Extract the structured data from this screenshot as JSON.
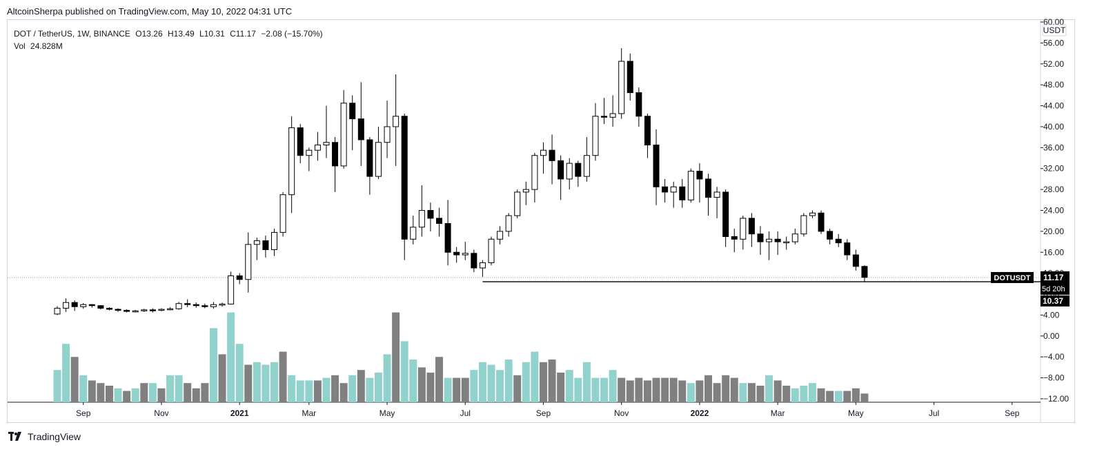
{
  "header": {
    "published_line": "AltcoinSherpa published on TradingView.com, May 10, 2022 04:31 UTC"
  },
  "legend": {
    "symbol": "DOT / TetherUS, 1W, BINANCE",
    "open_label": "O",
    "open": "13.26",
    "high_label": "H",
    "high": "13.49",
    "low_label": "L",
    "low": "10.31",
    "close_label": "C",
    "close": "11.17",
    "change": "−2.08 (−15.70%)",
    "vol_label": "Vol",
    "vol": "24.828M"
  },
  "price_axis": {
    "currency": "USDT",
    "last_price": "11.17",
    "countdown": "5d 20h",
    "low_marker": "10.37",
    "symbol_tag": "DOTUSDT"
  },
  "footer": {
    "brand": "TradingView"
  },
  "colors": {
    "up_body": "#ffffff",
    "down_body": "#000000",
    "wick": "#000000",
    "vol_up": "#92d2cc",
    "vol_down": "#808080",
    "support": "#000000"
  },
  "chart_data": {
    "type": "candlestick",
    "ylim": [
      -12,
      60
    ],
    "yticks": [
      -12,
      -8,
      -4,
      0,
      4,
      8,
      12,
      16,
      20,
      24,
      28,
      32,
      36,
      40,
      44,
      48,
      52,
      56,
      60
    ],
    "ytick_labels": [
      "−12.00",
      "−8.00",
      "−4.00",
      "0.00",
      "4.00",
      "8.00",
      "12.00",
      "16.00",
      "20.00",
      "24.00",
      "28.00",
      "32.00",
      "36.00",
      "40.00",
      "44.00",
      "48.00",
      "52.00",
      "56.00",
      "60.00"
    ],
    "xticks": [
      {
        "label": "Sep",
        "index": 3,
        "bold": false
      },
      {
        "label": "Nov",
        "index": 12,
        "bold": false
      },
      {
        "label": "2021",
        "index": 21,
        "bold": true
      },
      {
        "label": "Mar",
        "index": 29,
        "bold": false
      },
      {
        "label": "May",
        "index": 38,
        "bold": false
      },
      {
        "label": "Jul",
        "index": 47,
        "bold": false
      },
      {
        "label": "Sep",
        "index": 56,
        "bold": false
      },
      {
        "label": "Nov",
        "index": 65,
        "bold": false
      },
      {
        "label": "2022",
        "index": 74,
        "bold": true
      },
      {
        "label": "Mar",
        "index": 83,
        "bold": false
      },
      {
        "label": "May",
        "index": 92,
        "bold": false
      },
      {
        "label": "Jul",
        "index": 101,
        "bold": false
      },
      {
        "label": "Sep",
        "index": 110,
        "bold": false
      }
    ],
    "candles": [
      [
        4.2,
        5.3,
        4.0,
        5.7
      ],
      [
        5.3,
        6.4,
        4.6,
        7.2
      ],
      [
        6.4,
        5.6,
        4.8,
        6.8
      ],
      [
        5.6,
        6.0,
        5.2,
        6.3
      ],
      [
        6.0,
        5.8,
        5.4,
        6.1
      ],
      [
        5.8,
        5.3,
        5.1,
        5.9
      ],
      [
        5.3,
        5.1,
        4.9,
        5.5
      ],
      [
        5.1,
        4.9,
        4.6,
        5.3
      ],
      [
        4.9,
        4.7,
        4.5,
        5.1
      ],
      [
        4.7,
        4.8,
        4.5,
        5.0
      ],
      [
        4.8,
        5.0,
        4.6,
        5.2
      ],
      [
        5.0,
        4.9,
        4.5,
        5.3
      ],
      [
        4.9,
        5.1,
        4.7,
        5.3
      ],
      [
        5.1,
        5.2,
        4.9,
        5.5
      ],
      [
        5.2,
        6.2,
        5.0,
        6.5
      ],
      [
        6.2,
        6.0,
        5.5,
        7.0
      ],
      [
        6.0,
        5.8,
        5.4,
        6.4
      ],
      [
        5.8,
        5.6,
        5.3,
        6.2
      ],
      [
        5.6,
        6.0,
        5.2,
        6.5
      ],
      [
        6.0,
        6.1,
        5.6,
        6.4
      ],
      [
        6.1,
        11.5,
        6.0,
        12.3
      ],
      [
        11.5,
        10.8,
        9.9,
        12.0
      ],
      [
        10.8,
        17.5,
        8.3,
        19.8
      ],
      [
        17.5,
        18.2,
        14.5,
        18.8
      ],
      [
        18.2,
        16.5,
        15.0,
        19.2
      ],
      [
        16.5,
        19.8,
        15.3,
        20.5
      ],
      [
        19.8,
        27.0,
        19.0,
        27.5
      ],
      [
        27.0,
        39.8,
        23.5,
        42.0
      ],
      [
        39.8,
        34.5,
        33.0,
        40.5
      ],
      [
        34.5,
        35.5,
        31.5,
        36.0
      ],
      [
        35.5,
        36.5,
        33.5,
        39.0
      ],
      [
        36.5,
        37.0,
        34.0,
        44.0
      ],
      [
        37.0,
        32.5,
        27.5,
        38.0
      ],
      [
        32.5,
        44.5,
        32.0,
        47.0
      ],
      [
        44.5,
        41.5,
        35.5,
        46.0
      ],
      [
        41.5,
        37.5,
        32.5,
        48.5
      ],
      [
        37.5,
        30.5,
        27.0,
        38.0
      ],
      [
        30.5,
        37.0,
        30.0,
        40.0
      ],
      [
        37.0,
        40.0,
        34.0,
        45.0
      ],
      [
        40.0,
        42.0,
        32.5,
        50.0
      ],
      [
        42.0,
        18.5,
        14.5,
        42.5
      ],
      [
        18.5,
        20.8,
        17.5,
        23.0
      ],
      [
        20.8,
        24.0,
        19.0,
        28.8
      ],
      [
        24.0,
        22.5,
        20.0,
        25.5
      ],
      [
        22.5,
        21.5,
        19.0,
        24.5
      ],
      [
        21.5,
        16.0,
        13.5,
        26.0
      ],
      [
        16.0,
        15.5,
        14.0,
        17.0
      ],
      [
        15.5,
        15.8,
        14.5,
        18.0
      ],
      [
        15.8,
        13.0,
        12.2,
        16.5
      ],
      [
        13.0,
        14.0,
        11.3,
        14.5
      ],
      [
        14.0,
        18.5,
        13.5,
        19.0
      ],
      [
        18.5,
        20.0,
        17.5,
        21.0
      ],
      [
        20.0,
        23.0,
        19.0,
        23.5
      ],
      [
        23.0,
        27.5,
        22.5,
        28.0
      ],
      [
        27.5,
        28.0,
        25.0,
        29.5
      ],
      [
        28.0,
        34.5,
        25.5,
        35.0
      ],
      [
        34.5,
        35.5,
        31.0,
        37.0
      ],
      [
        35.5,
        33.5,
        29.0,
        38.5
      ],
      [
        33.5,
        30.0,
        26.0,
        34.5
      ],
      [
        30.0,
        33.0,
        28.0,
        34.0
      ],
      [
        33.0,
        30.5,
        28.5,
        33.5
      ],
      [
        30.5,
        34.5,
        29.5,
        38.0
      ],
      [
        34.5,
        42.0,
        33.5,
        44.5
      ],
      [
        42.0,
        41.8,
        40.5,
        45.5
      ],
      [
        41.8,
        42.5,
        40.0,
        46.0
      ],
      [
        42.5,
        52.5,
        41.5,
        55.0
      ],
      [
        52.5,
        46.5,
        45.0,
        54.0
      ],
      [
        46.5,
        42.0,
        40.0,
        47.5
      ],
      [
        42.0,
        36.5,
        34.0,
        42.5
      ],
      [
        36.5,
        28.5,
        25.0,
        39.5
      ],
      [
        28.5,
        27.5,
        25.5,
        30.0
      ],
      [
        27.5,
        28.5,
        24.5,
        29.5
      ],
      [
        28.5,
        26.0,
        24.5,
        30.0
      ],
      [
        26.0,
        31.5,
        25.5,
        32.0
      ],
      [
        31.5,
        30.0,
        25.5,
        33.0
      ],
      [
        30.0,
        26.5,
        23.0,
        31.0
      ],
      [
        26.5,
        27.5,
        22.5,
        28.5
      ],
      [
        27.5,
        19.0,
        17.0,
        28.0
      ],
      [
        19.0,
        18.5,
        16.0,
        20.5
      ],
      [
        18.5,
        22.5,
        16.5,
        23.0
      ],
      [
        22.5,
        19.5,
        17.0,
        23.5
      ],
      [
        19.5,
        18.0,
        15.5,
        21.0
      ],
      [
        18.0,
        18.5,
        14.5,
        20.0
      ],
      [
        18.5,
        18.0,
        15.5,
        20.0
      ],
      [
        18.0,
        18.0,
        16.5,
        19.0
      ],
      [
        18.0,
        19.5,
        17.5,
        20.5
      ],
      [
        19.5,
        23.0,
        19.0,
        23.5
      ],
      [
        23.0,
        23.5,
        22.5,
        24.0
      ],
      [
        23.5,
        20.0,
        19.5,
        24.0
      ],
      [
        20.0,
        18.5,
        17.5,
        20.5
      ],
      [
        18.5,
        17.8,
        17.0,
        19.5
      ],
      [
        17.8,
        15.5,
        14.5,
        18.5
      ],
      [
        15.5,
        13.3,
        12.5,
        16.5
      ],
      [
        13.3,
        11.2,
        10.3,
        13.5
      ]
    ],
    "volume": [
      [
        -6.5,
        true
      ],
      [
        -1.5,
        true
      ],
      [
        -4.0,
        false
      ],
      [
        -7.5,
        true
      ],
      [
        -8.5,
        false
      ],
      [
        -9.0,
        false
      ],
      [
        -9.5,
        false
      ],
      [
        -10.0,
        true
      ],
      [
        -10.5,
        false
      ],
      [
        -10.0,
        true
      ],
      [
        -9.0,
        false
      ],
      [
        -9.0,
        true
      ],
      [
        -10.0,
        false
      ],
      [
        -7.5,
        true
      ],
      [
        -7.5,
        true
      ],
      [
        -9.0,
        false
      ],
      [
        -10.0,
        false
      ],
      [
        -9.0,
        false
      ],
      [
        1.5,
        true
      ],
      [
        -3.5,
        false
      ],
      [
        4.5,
        true
      ],
      [
        -1.5,
        true
      ],
      [
        -5.5,
        false
      ],
      [
        -5.0,
        true
      ],
      [
        -5.5,
        true
      ],
      [
        -5.0,
        true
      ],
      [
        -3.0,
        false
      ],
      [
        -7.5,
        true
      ],
      [
        -8.5,
        true
      ],
      [
        -8.5,
        true
      ],
      [
        -8.5,
        false
      ],
      [
        -8.0,
        true
      ],
      [
        -7.5,
        false
      ],
      [
        -9.0,
        false
      ],
      [
        -7.5,
        true
      ],
      [
        -6.5,
        false
      ],
      [
        -8.0,
        true
      ],
      [
        -7.0,
        true
      ],
      [
        -3.5,
        true
      ],
      [
        4.5,
        false
      ],
      [
        -1.0,
        true
      ],
      [
        -4.5,
        true
      ],
      [
        -6.0,
        false
      ],
      [
        -7.0,
        false
      ],
      [
        -4.0,
        false
      ],
      [
        -8.0,
        true
      ],
      [
        -8.0,
        false
      ],
      [
        -8.0,
        false
      ],
      [
        -6.5,
        true
      ],
      [
        -5.0,
        true
      ],
      [
        -5.5,
        true
      ],
      [
        -6.5,
        true
      ],
      [
        -4.5,
        true
      ],
      [
        -7.5,
        false
      ],
      [
        -5.0,
        true
      ],
      [
        -3.0,
        true
      ],
      [
        -5.0,
        false
      ],
      [
        -4.5,
        false
      ],
      [
        -7.0,
        false
      ],
      [
        -6.5,
        true
      ],
      [
        -8.0,
        true
      ],
      [
        -5.0,
        true
      ],
      [
        -8.0,
        true
      ],
      [
        -8.0,
        true
      ],
      [
        -6.5,
        true
      ],
      [
        -8.0,
        false
      ],
      [
        -8.5,
        false
      ],
      [
        -8.0,
        false
      ],
      [
        -8.5,
        false
      ],
      [
        -8.0,
        false
      ],
      [
        -8.0,
        false
      ],
      [
        -8.0,
        false
      ],
      [
        -8.5,
        false
      ],
      [
        -9.0,
        true
      ],
      [
        -8.5,
        false
      ],
      [
        -7.5,
        false
      ],
      [
        -9.0,
        false
      ],
      [
        -7.5,
        false
      ],
      [
        -8.0,
        false
      ],
      [
        -9.0,
        true
      ],
      [
        -9.0,
        false
      ],
      [
        -9.5,
        false
      ],
      [
        -7.5,
        true
      ],
      [
        -8.5,
        false
      ],
      [
        -9.5,
        false
      ],
      [
        -10.0,
        true
      ],
      [
        -9.5,
        true
      ],
      [
        -9.0,
        true
      ],
      [
        -10.0,
        false
      ],
      [
        -10.5,
        false
      ],
      [
        -10.5,
        true
      ],
      [
        -10.5,
        false
      ],
      [
        -10.0,
        false
      ],
      [
        -11.0,
        false
      ]
    ],
    "support_line": {
      "value": 10.37,
      "from_index": 49
    },
    "last_price_line": {
      "value": 11.17
    }
  }
}
